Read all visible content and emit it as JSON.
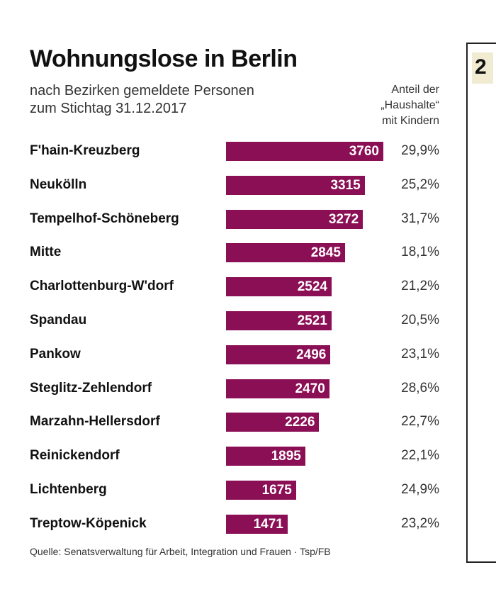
{
  "chart_data": {
    "type": "bar",
    "orientation": "horizontal",
    "title": "Wohnungslose in Berlin",
    "subtitle": [
      "nach Bezirken gemeldete Personen",
      "zum Stichtag 31.12.2017"
    ],
    "categories": [
      "F'hain-Kreuzberg",
      "Neukölln",
      "Tempelhof-Schöneberg",
      "Mitte",
      "Charlottenburg-W'dorf",
      "Spandau",
      "Pankow",
      "Steglitz-Zehlendorf",
      "Marzahn-Hellersdorf",
      "Reinickendorf",
      "Lichtenberg",
      "Treptow-Köpenick"
    ],
    "series": [
      {
        "values": [
          3760,
          3315,
          3272,
          2845,
          2524,
          2521,
          2496,
          2470,
          2226,
          1895,
          1675,
          1471
        ],
        "color": "#8a0f55"
      }
    ],
    "share_header": [
      "Anteil der",
      "„Haushalte“",
      "mit Kindern"
    ],
    "share_values": [
      "29,9%",
      "25,2%",
      "31,7%",
      "18,1%",
      "21,2%",
      "20,5%",
      "23,1%",
      "28,6%",
      "22,7%",
      "22,1%",
      "24,9%",
      "23,2%"
    ],
    "xlim": [
      0,
      3760
    ],
    "grid": false,
    "source": "Quelle: Senatsverwaltung für Arbeit, Integration und Frauen · Tsp/FB"
  },
  "neighbor_card": {
    "glyph": "2",
    "background": "#f1ebd2"
  }
}
